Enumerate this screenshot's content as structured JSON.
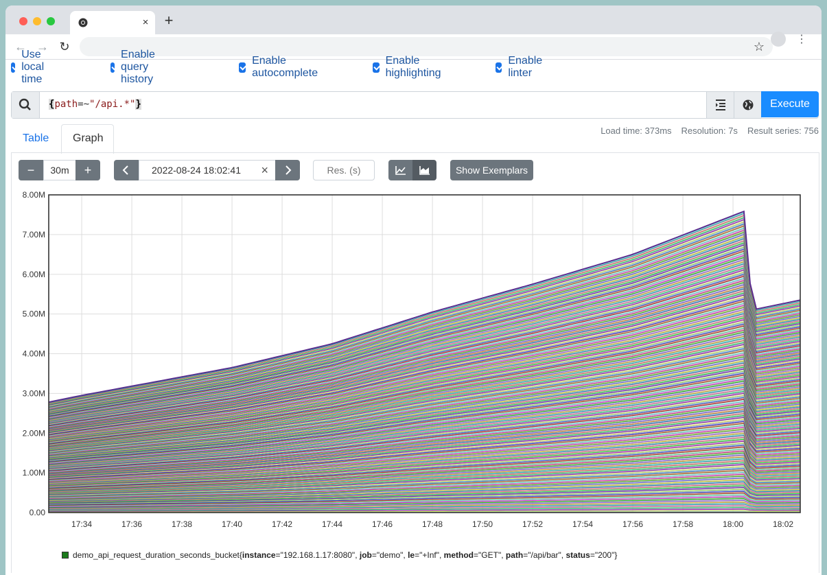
{
  "browser": {
    "traffic_lights": [
      "#ff5f57",
      "#febc2e",
      "#28c840"
    ],
    "tab_close": "×",
    "new_tab": "+"
  },
  "options": [
    {
      "label": "Use local time",
      "checked": true
    },
    {
      "label": "Enable query history",
      "checked": true
    },
    {
      "label": "Enable autocomplete",
      "checked": true
    },
    {
      "label": "Enable highlighting",
      "checked": true
    },
    {
      "label": "Enable linter",
      "checked": true
    }
  ],
  "query": {
    "brace_open": "{",
    "key": "path",
    "op": "=~",
    "value": "\"/api.*\"",
    "brace_close": "}",
    "execute_label": "Execute"
  },
  "tabs": [
    {
      "label": "Table",
      "active": false
    },
    {
      "label": "Graph",
      "active": true
    }
  ],
  "stats": {
    "load_time": "Load time: 373ms",
    "resolution": "Resolution: 7s",
    "result_series": "Result series: 756"
  },
  "graph_controls": {
    "minus": "−",
    "range": "30m",
    "plus": "+",
    "end_time": "2022-08-24 18:02:41",
    "clear": "×",
    "res_placeholder": "Res. (s)",
    "exemplars_label": "Show Exemplars"
  },
  "legend": {
    "metric": "demo_api_request_duration_seconds_bucket",
    "labels": [
      {
        "k": "instance",
        "v": "\"192.168.1.17:8080\""
      },
      {
        "k": "job",
        "v": "\"demo\""
      },
      {
        "k": "le",
        "v": "\"+Inf\""
      },
      {
        "k": "method",
        "v": "\"GET\""
      },
      {
        "k": "path",
        "v": "\"/api/bar\""
      },
      {
        "k": "status",
        "v": "\"200\""
      }
    ],
    "color": "#1b7a1b"
  },
  "chart_data": {
    "type": "area",
    "stacked": true,
    "series_count": 756,
    "ylim": [
      0,
      8000000
    ],
    "yticks": [
      "0.00",
      "1.00M",
      "2.00M",
      "3.00M",
      "4.00M",
      "5.00M",
      "6.00M",
      "7.00M",
      "8.00M"
    ],
    "xticks": [
      "17:34",
      "17:36",
      "17:38",
      "17:40",
      "17:42",
      "17:44",
      "17:46",
      "17:48",
      "17:50",
      "17:52",
      "17:54",
      "17:56",
      "17:58",
      "18:00",
      "18:02"
    ],
    "total": [
      {
        "t": "17:32:41",
        "v": 2780000
      },
      {
        "t": "17:34:00",
        "v": 2950000
      },
      {
        "t": "17:40:00",
        "v": 3650000
      },
      {
        "t": "17:44:00",
        "v": 4250000
      },
      {
        "t": "17:48:00",
        "v": 5050000
      },
      {
        "t": "17:52:00",
        "v": 5750000
      },
      {
        "t": "17:56:00",
        "v": 6500000
      },
      {
        "t": "18:00:30",
        "v": 7600000
      },
      {
        "t": "18:00:45",
        "v": 5100000
      },
      {
        "t": "18:02:41",
        "v": 5350000
      }
    ],
    "grid": true
  }
}
